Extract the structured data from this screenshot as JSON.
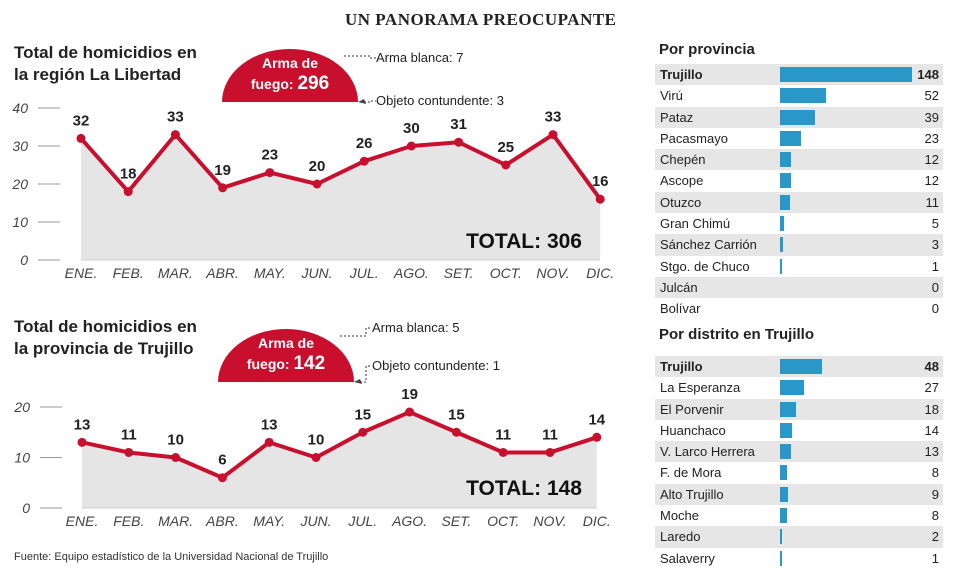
{
  "header": {
    "title": "UN PANORAMA PREOCUPANTE"
  },
  "chart_data": [
    {
      "type": "line",
      "title": "Total de homicidios en la región La Libertad",
      "categories": [
        "ENE.",
        "FEB.",
        "MAR.",
        "ABR.",
        "MAY.",
        "JUN.",
        "JUL.",
        "AGO.",
        "SET.",
        "OCT.",
        "NOV.",
        "DIC."
      ],
      "values": [
        32,
        18,
        33,
        19,
        23,
        20,
        26,
        30,
        31,
        25,
        33,
        16
      ],
      "ylim": [
        0,
        40
      ],
      "yticks": [
        0,
        10,
        20,
        30,
        40
      ],
      "total_label": "TOTAL: 306",
      "callout": {
        "main_line1": "Arma de",
        "main_line2": "fuego:",
        "main_value": "296",
        "note1": "Arma blanca: 7",
        "note2": "Objeto contundente: 3"
      }
    },
    {
      "type": "line",
      "title": "Total de homicidios en la provincia de Trujillo",
      "categories": [
        "ENE.",
        "FEB.",
        "MAR.",
        "ABR.",
        "MAY.",
        "JUN.",
        "JUL.",
        "AGO.",
        "SET.",
        "OCT.",
        "NOV.",
        "DIC."
      ],
      "values": [
        13,
        11,
        10,
        6,
        13,
        10,
        15,
        19,
        15,
        11,
        11,
        14
      ],
      "ylim": [
        0,
        20
      ],
      "yticks": [
        0,
        10,
        20
      ],
      "total_label": "TOTAL: 148",
      "callout": {
        "main_line1": "Arma de",
        "main_line2": "fuego:",
        "main_value": "142",
        "note1": "Arma blanca: 5",
        "note2": "Objeto contundente: 1"
      }
    },
    {
      "type": "bar",
      "title": "Por provincia",
      "categories": [
        "Trujillo",
        "Virú",
        "Pataz",
        "Pacasmayo",
        "Chepén",
        "Ascope",
        "Otuzco",
        "Gran Chimú",
        "Sánchez Carrión",
        "Stgo. de Chuco",
        "Julcán",
        "Bolívar"
      ],
      "values": [
        148,
        52,
        39,
        23,
        12,
        12,
        11,
        5,
        3,
        1,
        0,
        0
      ]
    },
    {
      "type": "bar",
      "title": "Por distrito en Trujillo",
      "categories": [
        "Trujillo",
        "La Esperanza",
        "El Porvenir",
        "Huanchaco",
        "V. Larco Herrera",
        "F. de Mora",
        "Alto Trujillo",
        "Moche",
        "Laredo",
        "Salaverry"
      ],
      "values": [
        48,
        27,
        18,
        14,
        13,
        8,
        9,
        8,
        2,
        1
      ]
    }
  ],
  "colors": {
    "line": "#c8102e",
    "bar": "#2a97c9",
    "area": "#e5e5e5",
    "row_alt": "#e6e6e6"
  },
  "footer": {
    "source": "Fuente: Equipo estadístico de la Universidad Nacional de Trujillo"
  }
}
